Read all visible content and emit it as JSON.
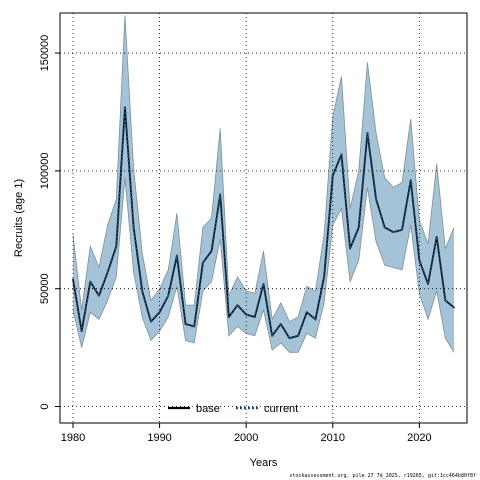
{
  "chart_data": {
    "type": "line",
    "xlabel": "Years",
    "ylabel": "Recruits (age 1)",
    "xlim": [
      1978.5,
      2025.5
    ],
    "ylim": [
      -7000,
      167000
    ],
    "x_ticks": [
      1980,
      1990,
      2000,
      2010,
      2020
    ],
    "y_ticks": [
      0,
      50000,
      100000,
      150000
    ],
    "grid": true,
    "legend_position": "bottom-center",
    "x": [
      1980,
      1981,
      1982,
      1983,
      1984,
      1985,
      1986,
      1987,
      1988,
      1989,
      1990,
      1991,
      1992,
      1993,
      1994,
      1995,
      1996,
      1997,
      1998,
      1999,
      2000,
      2001,
      2002,
      2003,
      2004,
      2005,
      2006,
      2007,
      2008,
      2009,
      2010,
      2011,
      2012,
      2013,
      2014,
      2015,
      2016,
      2017,
      2018,
      2019,
      2020,
      2021,
      2022,
      2023,
      2024
    ],
    "series": [
      {
        "name": "base",
        "color": "#000000",
        "style": "solid",
        "values": [
          54000,
          32000,
          53000,
          47000,
          57000,
          68000,
          127000,
          76000,
          49000,
          36000,
          40000,
          47000,
          64000,
          35000,
          34000,
          61000,
          66000,
          90000,
          38000,
          43000,
          39000,
          38000,
          52000,
          30000,
          35000,
          29000,
          30000,
          40000,
          37000,
          55000,
          98000,
          107000,
          67000,
          76000,
          116000,
          88000,
          76000,
          74000,
          75000,
          96000,
          62000,
          52000,
          72000,
          45000,
          42000
        ]
      },
      {
        "name": "current",
        "color": "#1f4e79",
        "style": "dotted",
        "values": [
          54000,
          32000,
          53000,
          47000,
          57000,
          68000,
          127000,
          76000,
          49000,
          36000,
          40000,
          47000,
          64000,
          35000,
          34000,
          61000,
          66000,
          90000,
          38000,
          43000,
          39000,
          38000,
          52000,
          30000,
          35000,
          29000,
          30000,
          40000,
          37000,
          55000,
          98000,
          107000,
          67000,
          76000,
          116000,
          88000,
          76000,
          74000,
          75000,
          96000,
          62000,
          52000,
          72000,
          45000,
          42000
        ]
      }
    ],
    "band": {
      "color": "#a4c3d6",
      "edge_color": "#7f8f99",
      "lower": [
        41000,
        25000,
        40000,
        37000,
        45000,
        55000,
        97000,
        57000,
        38000,
        28000,
        32000,
        38000,
        51000,
        28000,
        27000,
        49000,
        53000,
        71000,
        30000,
        34000,
        31000,
        30000,
        41000,
        24000,
        27000,
        23000,
        23000,
        31000,
        29000,
        44000,
        77000,
        84000,
        53000,
        62000,
        93000,
        70000,
        60000,
        59000,
        58000,
        77000,
        48000,
        37000,
        49000,
        29000,
        23000
      ],
      "upper": [
        73000,
        41000,
        68000,
        59000,
        77000,
        88000,
        166000,
        101000,
        65000,
        45000,
        50000,
        58000,
        82000,
        43000,
        43000,
        76000,
        80000,
        118000,
        47000,
        55000,
        49000,
        48000,
        66000,
        37000,
        44000,
        36000,
        38000,
        51000,
        49000,
        73000,
        123000,
        140000,
        84000,
        100000,
        146000,
        116000,
        97000,
        93000,
        95000,
        122000,
        79000,
        69000,
        103000,
        67000,
        76000
      ]
    }
  },
  "footnote": "stockassessment.org, pile 27 7d_2025, r19265, git:1cc464b80f8f"
}
